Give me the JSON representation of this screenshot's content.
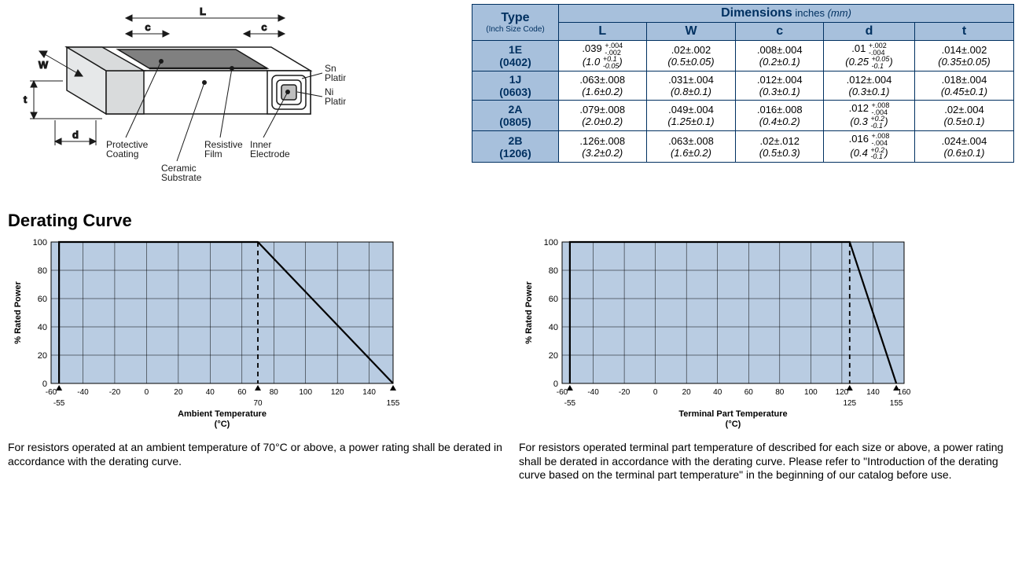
{
  "diagram": {
    "stroke": "#1a1a1a",
    "fill_top": "#808080",
    "fill_side": "#d9dbdc",
    "fill_end": "#e6e8e9",
    "dim_labels": {
      "L": "L",
      "W": "W",
      "t": "t",
      "d": "d",
      "c1": "c",
      "c2": "c"
    },
    "callouts": {
      "sn": "Sn\nPlating",
      "ni": "Ni\nPlating",
      "protective": "Protective\nCoating",
      "ceramic": "Ceramic\nSubstrate",
      "resistive": "Resistive\nFilm",
      "inner": "Inner\nElectrode"
    }
  },
  "table": {
    "header_type": "Type",
    "header_type_sub": "(Inch Size Code)",
    "header_dims": "Dimensions",
    "header_dims_units": "inches (mm)",
    "cols": [
      "L",
      "W",
      "c",
      "d",
      "t"
    ],
    "rows": [
      {
        "code": "1E",
        "size": "(0402)",
        "cells": [
          {
            "in_base": ".039",
            "in_asym_p": "+.004",
            "in_asym_m": "-.002",
            "mm_base": "1.0",
            "mm_asym_p": "+0.1",
            "mm_asym_m": "-0.05"
          },
          {
            "in": ".02±.002",
            "mm": "(0.5±0.05)"
          },
          {
            "in": ".008±.004",
            "mm": "(0.2±0.1)"
          },
          {
            "in_base": ".01",
            "in_asym_p": "+.002",
            "in_asym_m": "-.004",
            "mm_base": "0.25",
            "mm_asym_p": "+0.05",
            "mm_asym_m": "-0.1"
          },
          {
            "in": ".014±.002",
            "mm": "(0.35±0.05)"
          }
        ]
      },
      {
        "code": "1J",
        "size": "(0603)",
        "cells": [
          {
            "in": ".063±.008",
            "mm": "(1.6±0.2)"
          },
          {
            "in": ".031±.004",
            "mm": "(0.8±0.1)"
          },
          {
            "in": ".012±.004",
            "mm": "(0.3±0.1)"
          },
          {
            "in": ".012±.004",
            "mm": "(0.3±0.1)"
          },
          {
            "in": ".018±.004",
            "mm": "(0.45±0.1)"
          }
        ]
      },
      {
        "code": "2A",
        "size": "(0805)",
        "cells": [
          {
            "in": ".079±.008",
            "mm": "(2.0±0.2)"
          },
          {
            "in": ".049±.004",
            "mm": "(1.25±0.1)"
          },
          {
            "in": ".016±.008",
            "mm": "(0.4±0.2)"
          },
          {
            "in_base": ".012",
            "in_asym_p": "+.008",
            "in_asym_m": "-.004",
            "mm_base": "0.3",
            "mm_asym_p": "+0.2",
            "mm_asym_m": "-0.1"
          },
          {
            "in": ".02±.004",
            "mm": "(0.5±0.1)"
          }
        ]
      },
      {
        "code": "2B",
        "size": "(1206)",
        "cells": [
          {
            "in": ".126±.008",
            "mm": "(3.2±0.2)"
          },
          {
            "in": ".063±.008",
            "mm": "(1.6±0.2)"
          },
          {
            "in": ".02±.012",
            "mm": "(0.5±0.3)"
          },
          {
            "in_base": ".016",
            "in_asym_p": "+.008",
            "in_asym_m": "-.004",
            "mm_base": "0.4",
            "mm_asym_p": "+0.2",
            "mm_asym_m": "-0.1"
          },
          {
            "in": ".024±.004",
            "mm": "(0.6±0.1)"
          }
        ]
      }
    ]
  },
  "section_title": "Derating Curve",
  "charts": {
    "bg": "#b9cce2",
    "grid": "#000000",
    "line": "#000000",
    "yticks": [
      0,
      20,
      40,
      60,
      80,
      100
    ],
    "ylabel": "% Rated Power",
    "left": {
      "xlabel": "Ambient Temperature\n(°C)",
      "xticks": [
        -60,
        -40,
        -20,
        0,
        20,
        40,
        60,
        80,
        100,
        120,
        140
      ],
      "xlim": [
        -60,
        155
      ],
      "sub_labels": [
        {
          "x": -55,
          "t": "-55"
        },
        {
          "x": 70,
          "t": "70"
        },
        {
          "x": 155,
          "t": "155"
        }
      ],
      "line": [
        [
          -55,
          0
        ],
        [
          -55,
          100
        ],
        [
          70,
          100
        ],
        [
          155,
          0
        ]
      ],
      "dash": [
        {
          "x": -55
        },
        {
          "x": 70
        }
      ],
      "caption": "For resistors operated at an ambient temperature of 70°C or above, a power rating shall be derated in accordance with the derating curve."
    },
    "right": {
      "xlabel": "Terminal Part Temperature\n(°C)",
      "xticks": [
        -60,
        -40,
        -20,
        0,
        20,
        40,
        60,
        80,
        100,
        120,
        140,
        160
      ],
      "xlim": [
        -60,
        160
      ],
      "sub_labels": [
        {
          "x": -55,
          "t": "-55"
        },
        {
          "x": 125,
          "t": "125"
        },
        {
          "x": 155,
          "t": "155"
        }
      ],
      "line": [
        [
          -55,
          0
        ],
        [
          -55,
          100
        ],
        [
          125,
          100
        ],
        [
          155,
          0
        ]
      ],
      "dash": [
        {
          "x": -55
        },
        {
          "x": 125
        }
      ],
      "caption": "For resistors operated terminal part temperature of described for each size or above, a power rating shall be derated in accordance with the derating curve. Please refer to \"Introduction of the derating curve based on the terminal part temperature\" in the beginning of our catalog before use."
    }
  }
}
